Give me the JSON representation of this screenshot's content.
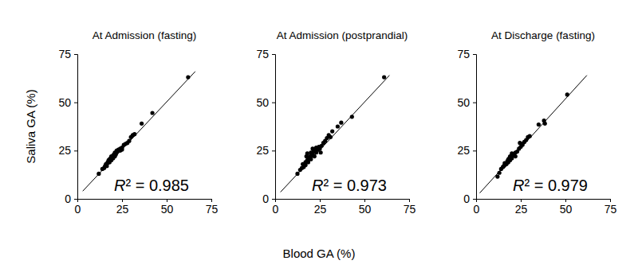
{
  "chart_data": [
    {
      "type": "scatter",
      "title": "At Admission (fasting)",
      "annotation": "R² = 0.985",
      "x": [
        12,
        14,
        15,
        15.5,
        16,
        16.5,
        17,
        17,
        17.5,
        18,
        18,
        18.5,
        19,
        19,
        19.5,
        20,
        20,
        20.5,
        21,
        21,
        21.5,
        22,
        22,
        22.5,
        23,
        24,
        24,
        25,
        25,
        26,
        27,
        28,
        29,
        30,
        31,
        32,
        36,
        42,
        62
      ],
      "values": [
        13,
        15.5,
        16,
        17,
        18,
        17,
        18.5,
        19,
        20,
        19,
        20.5,
        21,
        20,
        22,
        21.5,
        21,
        22.5,
        23,
        22,
        24,
        23,
        24,
        25,
        24.5,
        25.5,
        25,
        26,
        25.5,
        26.5,
        28,
        28.5,
        29,
        30,
        32,
        33,
        33.5,
        39,
        44.5,
        63
      ],
      "fit": {
        "x": [
          3,
          66
        ],
        "values": [
          4,
          66
        ]
      },
      "color": "#000000",
      "xlim": [
        0,
        75
      ],
      "ylim": [
        0,
        75
      ],
      "xticks": [
        0,
        25,
        50,
        75
      ],
      "yticks": [
        0,
        25,
        50,
        75
      ],
      "grid": false
    },
    {
      "type": "scatter",
      "title": "At Admission (postprandial)",
      "annotation": "R² = 0.973",
      "x": [
        12.5,
        14,
        15,
        15.5,
        16,
        17,
        17,
        17.5,
        18,
        18,
        18.5,
        19,
        19.5,
        20,
        20,
        20.5,
        21,
        21,
        21.5,
        22,
        22.5,
        23,
        23,
        24,
        24.5,
        25,
        25.5,
        26,
        27,
        28,
        29,
        30,
        31,
        32,
        35,
        37,
        43,
        61
      ],
      "values": [
        13,
        15,
        16,
        18,
        16.5,
        19,
        17.5,
        22,
        20,
        23.5,
        19,
        21,
        22,
        20.5,
        24,
        22.5,
        23,
        26,
        24.5,
        22,
        25,
        24,
        26.5,
        25.5,
        27,
        26,
        24,
        27.5,
        29,
        30,
        31.5,
        33,
        32,
        35,
        37.5,
        39.5,
        42.5,
        63
      ],
      "fit": {
        "x": [
          3,
          64
        ],
        "values": [
          3.5,
          64
        ]
      },
      "color": "#000000",
      "xlim": [
        0,
        75
      ],
      "ylim": [
        0,
        75
      ],
      "xticks": [
        0,
        25,
        50,
        75
      ],
      "yticks": [
        0,
        25,
        50,
        75
      ],
      "grid": false
    },
    {
      "type": "scatter",
      "title": "At Discharge (fasting)",
      "annotation": "R² = 0.979",
      "x": [
        12,
        13,
        14,
        15,
        15.5,
        16,
        16,
        17,
        17.5,
        18,
        18,
        18.5,
        19,
        19,
        20,
        20,
        20.5,
        21,
        22,
        22,
        23,
        24,
        24.5,
        25,
        25.5,
        26,
        27,
        28,
        29,
        30,
        35,
        38,
        38.5,
        51
      ],
      "values": [
        11.5,
        13.5,
        15.5,
        16.5,
        17,
        17.5,
        18.5,
        18,
        19.5,
        19,
        20.5,
        21,
        20,
        22,
        21,
        23.5,
        22.5,
        23,
        24,
        22,
        24.5,
        26,
        29,
        27,
        28.5,
        28,
        29.5,
        30.5,
        32,
        32.5,
        38.5,
        40.5,
        39,
        54
      ],
      "fit": {
        "x": [
          2,
          62
        ],
        "values": [
          3,
          64
        ]
      },
      "color": "#000000",
      "xlim": [
        0,
        75
      ],
      "ylim": [
        0,
        75
      ],
      "xticks": [
        0,
        25,
        50,
        75
      ],
      "yticks": [
        0,
        25,
        50,
        75
      ],
      "grid": false
    }
  ],
  "x_label": "Blood GA (%)",
  "y_label": "Saliva GA (%)"
}
